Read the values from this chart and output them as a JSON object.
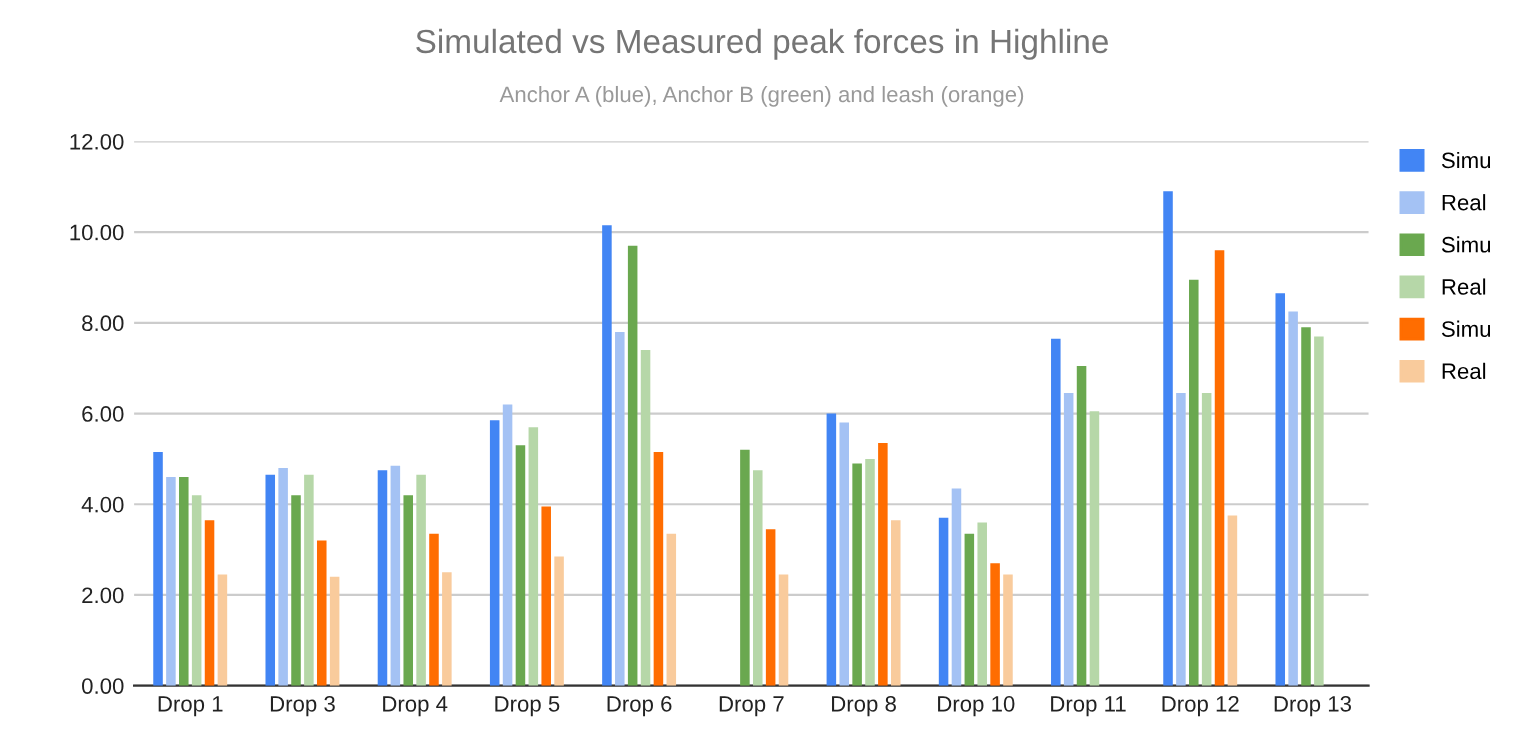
{
  "chart_data": {
    "type": "bar",
    "title": "Simulated vs Measured peak forces in Highline",
    "subtitle": "Anchor A (blue), Anchor B (green) and leash (orange)",
    "categories": [
      "Drop 1",
      "Drop 3",
      "Drop 4",
      "Drop 5",
      "Drop 6",
      "Drop 7",
      "Drop 8",
      "Drop 10",
      "Drop 11",
      "Drop 12",
      "Drop 13"
    ],
    "series": [
      {
        "name": "Simu",
        "color": "#4285f4",
        "values": [
          5.15,
          4.65,
          4.75,
          5.85,
          10.15,
          null,
          6.0,
          3.7,
          7.65,
          10.9,
          8.65
        ]
      },
      {
        "name": "Real",
        "color": "#a4c2f4",
        "values": [
          4.6,
          4.8,
          4.85,
          6.2,
          7.8,
          null,
          5.8,
          4.35,
          6.45,
          6.45,
          8.25
        ]
      },
      {
        "name": "Simu",
        "color": "#6aa84f",
        "values": [
          4.6,
          4.2,
          4.2,
          5.3,
          9.7,
          5.2,
          4.9,
          3.35,
          7.05,
          8.95,
          7.9
        ]
      },
      {
        "name": "Real",
        "color": "#b6d7a8",
        "values": [
          4.2,
          4.65,
          4.65,
          5.7,
          7.4,
          4.75,
          5.0,
          3.6,
          6.05,
          6.45,
          7.7
        ]
      },
      {
        "name": "Simu",
        "color": "#ff6d01",
        "values": [
          3.65,
          3.2,
          3.35,
          3.95,
          5.15,
          3.45,
          5.35,
          2.7,
          null,
          9.6,
          null
        ]
      },
      {
        "name": "Real",
        "color": "#f9cb9c",
        "values": [
          2.45,
          2.4,
          2.5,
          2.85,
          3.35,
          2.45,
          3.65,
          2.45,
          null,
          3.75,
          null
        ]
      }
    ],
    "ylim": [
      0,
      12
    ],
    "yticks": [
      {
        "value": 0,
        "label": "0.00"
      },
      {
        "value": 2,
        "label": "2.00"
      },
      {
        "value": 4,
        "label": "4.00"
      },
      {
        "value": 6,
        "label": "6.00"
      },
      {
        "value": 8,
        "label": "8.00"
      },
      {
        "value": 10,
        "label": "10.00"
      },
      {
        "value": 12,
        "label": "12.00"
      }
    ],
    "grid": "y",
    "legend": "top right"
  }
}
